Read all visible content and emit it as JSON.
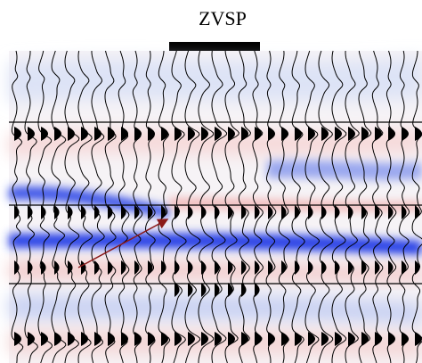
{
  "title": "ZVSP"
}
